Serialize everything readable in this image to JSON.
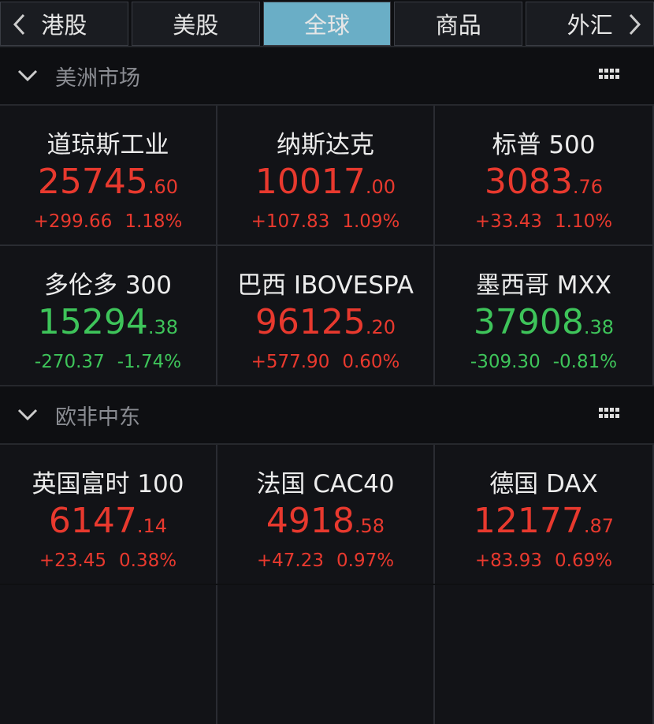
{
  "tabs": [
    {
      "label": "港股",
      "active": false
    },
    {
      "label": "美股",
      "active": false
    },
    {
      "label": "全球",
      "active": true
    },
    {
      "label": "商品",
      "active": false
    },
    {
      "label": "外汇",
      "active": false
    }
  ],
  "sections": [
    {
      "title": "美洲市场",
      "cards": [
        {
          "name": "道琼斯工业",
          "price_int": "25745",
          "price_dec": ".60",
          "change": "+299.66",
          "percent": "1.18%",
          "color": "#e8392e"
        },
        {
          "name": "纳斯达克",
          "price_int": "10017",
          "price_dec": ".00",
          "change": "+107.83",
          "percent": "1.09%",
          "color": "#e8392e"
        },
        {
          "name": "标普 500",
          "price_int": "3083",
          "price_dec": ".76",
          "change": "+33.43",
          "percent": "1.10%",
          "color": "#e8392e"
        },
        {
          "name": "多伦多 300",
          "price_int": "15294",
          "price_dec": ".38",
          "change": "-270.37",
          "percent": "-1.74%",
          "color": "#3ec45a"
        },
        {
          "name": "巴西 IBOVESPA",
          "price_int": "96125",
          "price_dec": ".20",
          "change": "+577.90",
          "percent": "0.60%",
          "color": "#e8392e"
        },
        {
          "name": "墨西哥 MXX",
          "price_int": "37908",
          "price_dec": ".38",
          "change": "-309.30",
          "percent": "-0.81%",
          "color": "#3ec45a"
        }
      ]
    },
    {
      "title": "欧非中东",
      "cards": [
        {
          "name": "英国富时 100",
          "price_int": "6147",
          "price_dec": ".14",
          "change": "+23.45",
          "percent": "0.38%",
          "color": "#e8392e"
        },
        {
          "name": "法国 CAC40",
          "price_int": "4918",
          "price_dec": ".58",
          "change": "+47.23",
          "percent": "0.97%",
          "color": "#e8392e"
        },
        {
          "name": "德国 DAX",
          "price_int": "12177",
          "price_dec": ".87",
          "change": "+83.93",
          "percent": "0.69%",
          "color": "#e8392e"
        }
      ]
    }
  ]
}
